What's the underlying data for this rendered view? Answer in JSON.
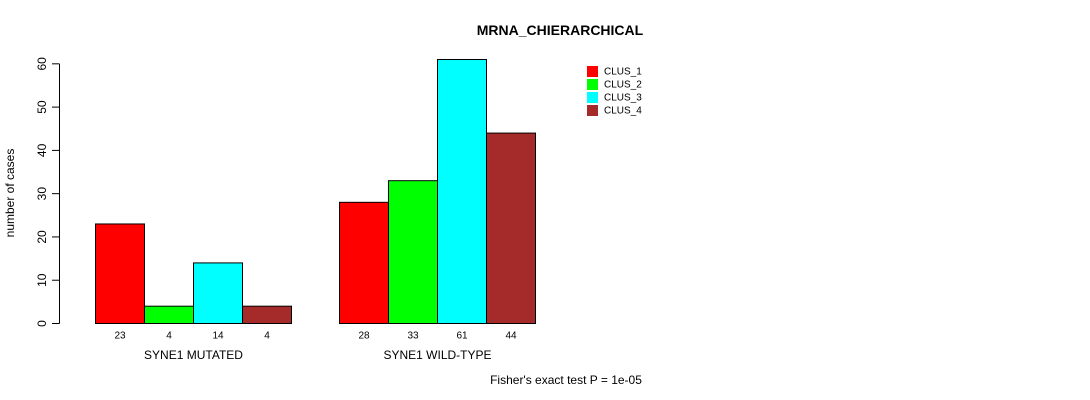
{
  "chart_data": {
    "type": "bar",
    "title": "MRNA_CHIERARCHICAL",
    "ylabel": "number of cases",
    "xlabel": "",
    "ylim": [
      0,
      61
    ],
    "yticks": [
      0,
      10,
      20,
      30,
      40,
      50,
      60
    ],
    "groups": [
      {
        "name": "SYNE1 MUTATED",
        "values": [
          23,
          4,
          14,
          4
        ]
      },
      {
        "name": "SYNE1 WILD-TYPE",
        "values": [
          28,
          33,
          61,
          44
        ]
      }
    ],
    "series": [
      {
        "name": "CLUS_1",
        "color": "#ff0000"
      },
      {
        "name": "CLUS_2",
        "color": "#00ff00"
      },
      {
        "name": "CLUS_3",
        "color": "#00ffff"
      },
      {
        "name": "CLUS_4",
        "color": "#a52a2a"
      }
    ],
    "legend_position": "top-right",
    "footnote": "Fisher's exact test P = 1e-05"
  }
}
